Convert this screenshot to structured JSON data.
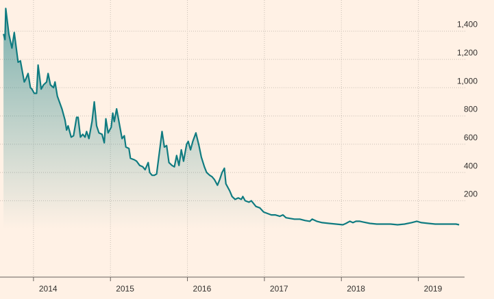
{
  "chart_data": {
    "type": "area",
    "x": [
      2013.61,
      2013.63,
      2013.64,
      2013.68,
      2013.72,
      2013.75,
      2013.8,
      2013.83,
      2013.88,
      2013.9,
      2013.93,
      2013.96,
      2013.98,
      2014.01,
      2014.04,
      2014.06,
      2014.1,
      2014.13,
      2014.17,
      2014.19,
      2014.22,
      2014.26,
      2014.28,
      2014.31,
      2014.37,
      2014.41,
      2014.43,
      2014.45,
      2014.49,
      2014.52,
      2014.56,
      2014.58,
      2014.61,
      2014.64,
      2014.67,
      2014.69,
      2014.72,
      2014.76,
      2014.79,
      2014.82,
      2014.85,
      2014.89,
      2014.92,
      2014.94,
      2014.97,
      2015.01,
      2015.03,
      2015.05,
      2015.08,
      2015.11,
      2015.15,
      2015.18,
      2015.2,
      2015.24,
      2015.26,
      2015.31,
      2015.34,
      2015.38,
      2015.42,
      2015.45,
      2015.49,
      2015.51,
      2015.54,
      2015.57,
      2015.6,
      2015.64,
      2015.67,
      2015.7,
      2015.73,
      2015.76,
      2015.8,
      2015.83,
      2015.86,
      2015.89,
      2015.92,
      2015.95,
      2015.99,
      2016.01,
      2016.04,
      2016.07,
      2016.11,
      2016.15,
      2016.18,
      2016.22,
      2016.25,
      2016.29,
      2016.32,
      2016.35,
      2016.39,
      2016.42,
      2016.45,
      2016.48,
      2016.5,
      2016.55,
      2016.58,
      2016.62,
      2016.66,
      2016.7,
      2016.72,
      2016.75,
      2016.8,
      2016.83,
      2016.86,
      2016.89,
      2016.94,
      2016.99,
      2017.04,
      2017.09,
      2017.14,
      2017.2,
      2017.24,
      2017.28,
      2017.33,
      2017.39,
      2017.46,
      2017.53,
      2017.59,
      2017.62,
      2017.68,
      2017.75,
      2017.84,
      2017.93,
      2018.02,
      2018.06,
      2018.11,
      2018.15,
      2018.19,
      2018.24,
      2018.28,
      2018.37,
      2018.46,
      2018.55,
      2018.64,
      2018.73,
      2018.82,
      2018.91,
      2018.98,
      2019.04,
      2019.13,
      2019.22,
      2019.31,
      2019.4,
      2019.49,
      2019.53
    ],
    "series": [
      {
        "color": "#0f7b80",
        "values": [
          1380,
          1340,
          1560,
          1380,
          1280,
          1390,
          1180,
          1190,
          1040,
          1060,
          1100,
          1000,
          990,
          960,
          960,
          1160,
          990,
          1020,
          1040,
          1100,
          1020,
          1000,
          1040,
          940,
          850,
          770,
          700,
          730,
          650,
          660,
          790,
          790,
          650,
          670,
          650,
          690,
          640,
          760,
          900,
          730,
          680,
          670,
          610,
          780,
          680,
          720,
          820,
          760,
          850,
          760,
          640,
          660,
          580,
          570,
          500,
          490,
          480,
          450,
          440,
          420,
          470,
          400,
          380,
          380,
          390,
          560,
          690,
          580,
          590,
          470,
          450,
          440,
          520,
          450,
          560,
          480,
          600,
          620,
          560,
          620,
          680,
          590,
          510,
          440,
          400,
          380,
          370,
          350,
          310,
          350,
          400,
          430,
          320,
          270,
          230,
          210,
          220,
          210,
          230,
          200,
          190,
          200,
          180,
          160,
          150,
          120,
          110,
          100,
          100,
          90,
          100,
          80,
          75,
          70,
          70,
          60,
          55,
          70,
          55,
          45,
          40,
          35,
          30,
          40,
          55,
          45,
          55,
          55,
          50,
          40,
          35,
          35,
          35,
          30,
          35,
          45,
          55,
          45,
          40,
          35,
          35,
          35,
          35,
          30
        ]
      }
    ],
    "xlim": [
      2013.565,
      2019.6
    ],
    "xticks": [
      2014,
      2015,
      2016,
      2017,
      2018,
      2019
    ],
    "ylim": [
      -340,
      1620
    ],
    "yticks": [
      {
        "value": 200,
        "label": "200"
      },
      {
        "value": 400,
        "label": "400"
      },
      {
        "value": 600,
        "label": "600"
      },
      {
        "value": 800,
        "label": "800"
      },
      {
        "value": 1000,
        "label": "1,000"
      },
      {
        "value": 1200,
        "label": "1,200"
      },
      {
        "value": 1400,
        "label": "1,400"
      }
    ],
    "grid": true
  }
}
